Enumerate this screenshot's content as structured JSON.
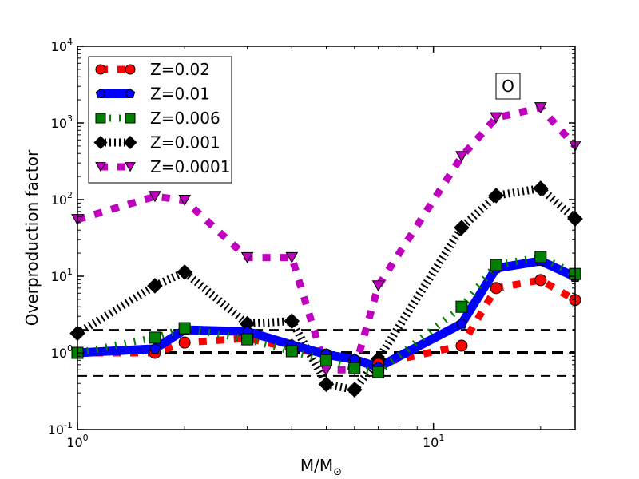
{
  "chart_data": {
    "type": "line",
    "title": "",
    "xlabel": "M/M",
    "xlabel_subscript": "⊙",
    "ylabel": "Overproduction factor",
    "xscale": "log",
    "yscale": "log",
    "xlim": [
      1,
      25
    ],
    "ylim": [
      0.1,
      10000
    ],
    "x_ticks": [
      {
        "value": 1,
        "base": "10",
        "exp": "0"
      },
      {
        "value": 10,
        "base": "10",
        "exp": "1"
      }
    ],
    "y_ticks": [
      {
        "value": 0.1,
        "base": "10",
        "exp": "-1"
      },
      {
        "value": 1,
        "base": "10",
        "exp": "0"
      },
      {
        "value": 10,
        "base": "10",
        "exp": "1"
      },
      {
        "value": 100,
        "base": "10",
        "exp": "2"
      },
      {
        "value": 1000,
        "base": "10",
        "exp": "3"
      },
      {
        "value": 10000,
        "base": "10",
        "exp": "4"
      }
    ],
    "grid": false,
    "legend_position": "top-left",
    "annotation": "O",
    "annotation_position": "top-right",
    "x": [
      1,
      1.65,
      2,
      3,
      4,
      5,
      6,
      7,
      12,
      15,
      20,
      25
    ],
    "reference_lines": [
      {
        "y": 2.0,
        "style": "dashed",
        "weight": "thin"
      },
      {
        "y": 1.0,
        "style": "dashed",
        "weight": "thick"
      },
      {
        "y": 0.5,
        "style": "dashed",
        "weight": "thin"
      }
    ],
    "series": [
      {
        "name": "Z=0.02",
        "color": "#ff0000",
        "marker": "circle",
        "linestyle": "dotted",
        "values": [
          1.0,
          1.0,
          1.36,
          1.55,
          1.15,
          0.95,
          0.8,
          0.72,
          1.24,
          7.0,
          8.9,
          4.9
        ]
      },
      {
        "name": "Z=0.01",
        "color": "#0000ff",
        "marker": "pentagon",
        "linestyle": "solid",
        "values": [
          1.0,
          1.13,
          2.0,
          1.9,
          1.27,
          0.95,
          0.82,
          0.65,
          2.4,
          12.7,
          15.8,
          9.8
        ]
      },
      {
        "name": "Z=0.006",
        "color": "#008000",
        "marker": "square",
        "linestyle": "dashdot",
        "values": [
          1.0,
          1.58,
          2.1,
          1.5,
          1.05,
          0.8,
          0.63,
          0.56,
          4.0,
          14.0,
          17.8,
          10.7
        ]
      },
      {
        "name": "Z=0.001",
        "color": "#000000",
        "marker": "diamond",
        "linestyle": "hatched",
        "values": [
          1.8,
          7.5,
          11.3,
          2.4,
          2.6,
          0.39,
          0.33,
          0.83,
          43,
          113,
          140,
          56
        ]
      },
      {
        "name": "Z=0.0001",
        "color": "#bf00bf",
        "marker": "triangle-down",
        "linestyle": "dotted",
        "values": [
          55,
          110,
          98,
          17.5,
          17.5,
          0.6,
          0.6,
          7.5,
          365,
          1170,
          1580,
          500
        ]
      }
    ]
  }
}
